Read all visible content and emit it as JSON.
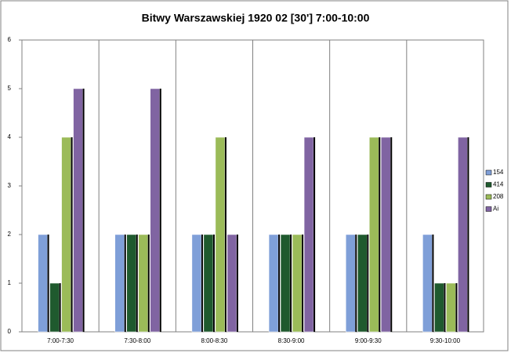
{
  "chart_data": {
    "type": "bar",
    "title": "Bitwy Warszawskiej 1920   02 [30']   7:00-10:00",
    "categories": [
      "7:00-7:30",
      "7:30-8:00",
      "8:00-8:30",
      "8:30-9:00",
      "9:00-9:30",
      "9:30-10:00"
    ],
    "series": [
      {
        "name": "154",
        "color": "#7f9fd8",
        "values": [
          2,
          2,
          2,
          2,
          2,
          2
        ]
      },
      {
        "name": "414",
        "color": "#1f5a2e",
        "values": [
          1,
          2,
          2,
          2,
          2,
          1
        ]
      },
      {
        "name": "208",
        "color": "#9bbb59",
        "values": [
          4,
          2,
          4,
          2,
          4,
          1
        ]
      },
      {
        "name": "Ai",
        "color": "#8064a2",
        "values": [
          5,
          5,
          2,
          4,
          4,
          4
        ]
      }
    ],
    "ylim": [
      0,
      6
    ],
    "yticks": [
      0,
      1,
      2,
      3,
      4,
      5,
      6
    ],
    "grid": false,
    "legend": "right"
  }
}
